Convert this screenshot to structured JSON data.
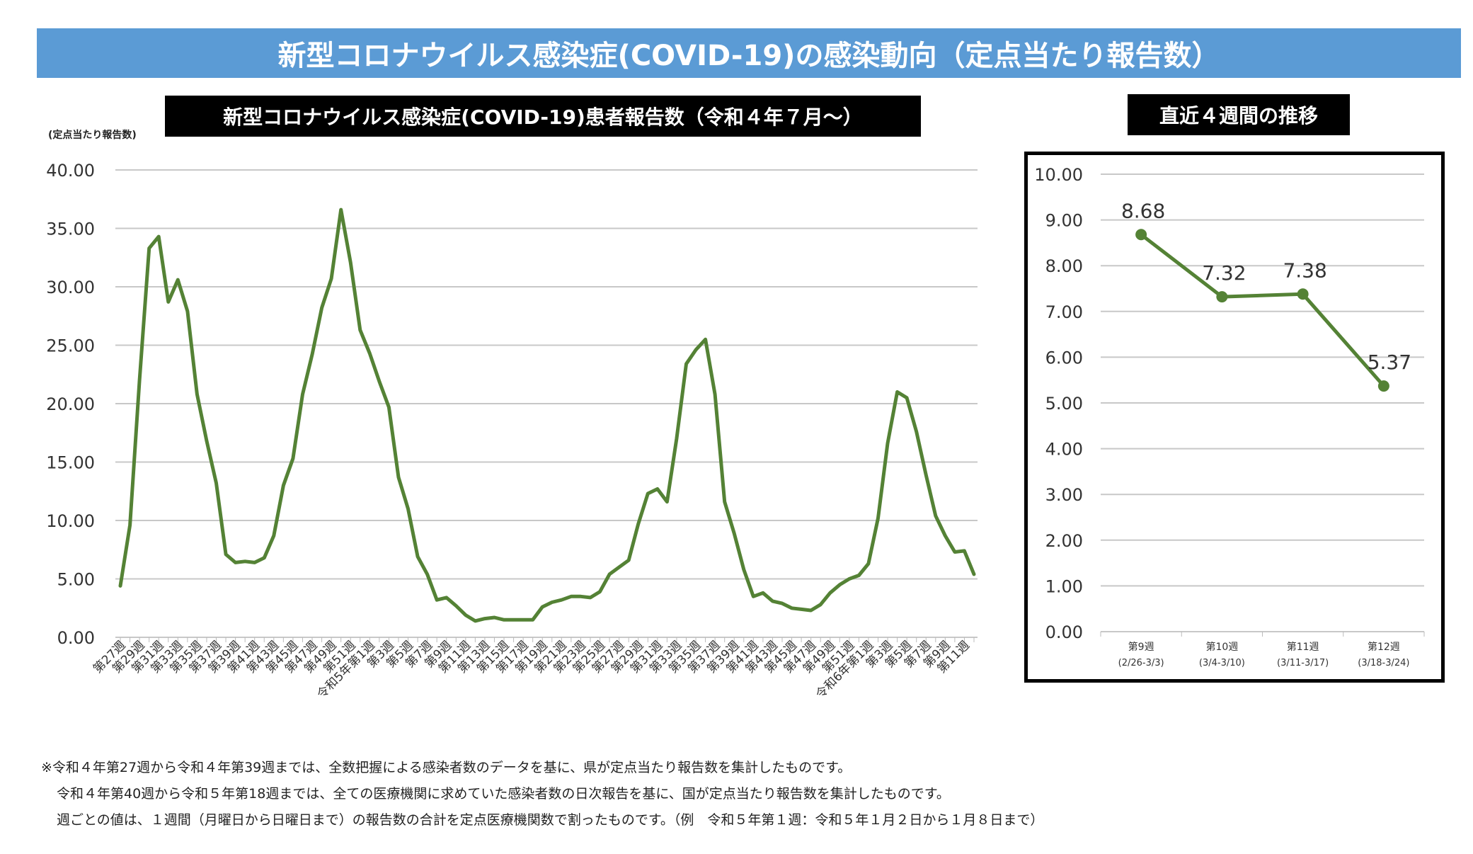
{
  "header": {
    "title": "新型コロナウイルス感染症(COVID-19)の感染動向（定点当たり報告数）"
  },
  "main_chart_subtitle": "新型コロナウイルス感染症(COVID-19)患者報告数（令和４年７月～）",
  "side_chart_subtitle": "直近４週間の推移",
  "y_unit_label": "(定点当たり報告数)",
  "series_color": "#548235",
  "chart_data": [
    {
      "type": "line",
      "title": "新型コロナウイルス感染症(COVID-19)患者報告数（令和４年７月～）",
      "ylabel": "(定点当たり報告数)",
      "ylim": [
        0,
        40
      ],
      "yticks": [
        "0.00",
        "5.00",
        "10.00",
        "15.00",
        "20.00",
        "25.00",
        "30.00",
        "35.00",
        "40.00"
      ],
      "grid": true,
      "x_tick_labels": [
        "第27週",
        "第29週",
        "第31週",
        "第33週",
        "第35週",
        "第37週",
        "第39週",
        "第41週",
        "第43週",
        "第45週",
        "第47週",
        "第49週",
        "第51週",
        "令和5年第1週",
        "第3週",
        "第5週",
        "第7週",
        "第9週",
        "第11週",
        "第13週",
        "第15週",
        "第17週",
        "第19週",
        "第21週",
        "第23週",
        "第25週",
        "第27週",
        "第29週",
        "第31週",
        "第33週",
        "第35週",
        "第37週",
        "第39週",
        "第41週",
        "第43週",
        "第45週",
        "第47週",
        "第49週",
        "第51週",
        "令和6年第1週",
        "第3週",
        "第5週",
        "第7週",
        "第9週",
        "第11週"
      ],
      "values": [
        4.4,
        9.6,
        22.0,
        33.3,
        34.3,
        28.7,
        30.6,
        27.9,
        20.8,
        16.8,
        13.2,
        7.1,
        6.4,
        6.5,
        6.4,
        6.8,
        8.7,
        13.0,
        15.3,
        20.8,
        24.2,
        28.2,
        30.7,
        36.6,
        32.1,
        26.3,
        24.3,
        21.9,
        19.7,
        13.7,
        11.0,
        6.9,
        5.4,
        3.2,
        3.4,
        2.7,
        1.9,
        1.4,
        1.6,
        1.7,
        1.5,
        1.5,
        1.5,
        1.5,
        2.6,
        3.0,
        3.2,
        3.5,
        3.5,
        3.4,
        3.9,
        5.4,
        6.0,
        6.6,
        9.7,
        12.3,
        12.7,
        11.6,
        17.0,
        23.4,
        24.6,
        25.5,
        20.8,
        11.6,
        8.9,
        5.8,
        3.5,
        3.8,
        3.1,
        2.9,
        2.5,
        2.4,
        2.3,
        2.8,
        3.8,
        4.5,
        5.0,
        5.3,
        6.3,
        10.2,
        16.6,
        21.0,
        20.5,
        17.6,
        13.9,
        10.4,
        8.7,
        7.3,
        7.4,
        5.4
      ]
    },
    {
      "type": "line",
      "title": "直近４週間の推移",
      "ylim": [
        0,
        10
      ],
      "yticks": [
        "0.00",
        "1.00",
        "2.00",
        "3.00",
        "4.00",
        "5.00",
        "6.00",
        "7.00",
        "8.00",
        "9.00",
        "10.00"
      ],
      "grid": true,
      "categories": [
        "第9週",
        "第10週",
        "第11週",
        "第12週"
      ],
      "category_ranges": [
        "(2/26-3/3)",
        "(3/4-3/10)",
        "(3/11-3/17)",
        "(3/18-3/24)"
      ],
      "values": [
        8.68,
        7.32,
        7.38,
        5.37
      ],
      "data_labels": [
        "8.68",
        "7.32",
        "7.38",
        "5.37"
      ]
    }
  ],
  "notes": [
    "※令和４年第27週から令和４年第39週までは、全数把握による感染者数のデータを基に、県が定点当たり報告数を集計したものです。",
    "令和４年第40週から令和５年第18週までは、全ての医療機関に求めていた感染者数の日次報告を基に、国が定点当たり報告数を集計したものです。",
    "週ごとの値は、１週間（月曜日から日曜日まで）の報告数の合計を定点医療機関数で割ったものです。（例　令和５年第１週：令和５年１月２日から１月８日まで）"
  ]
}
